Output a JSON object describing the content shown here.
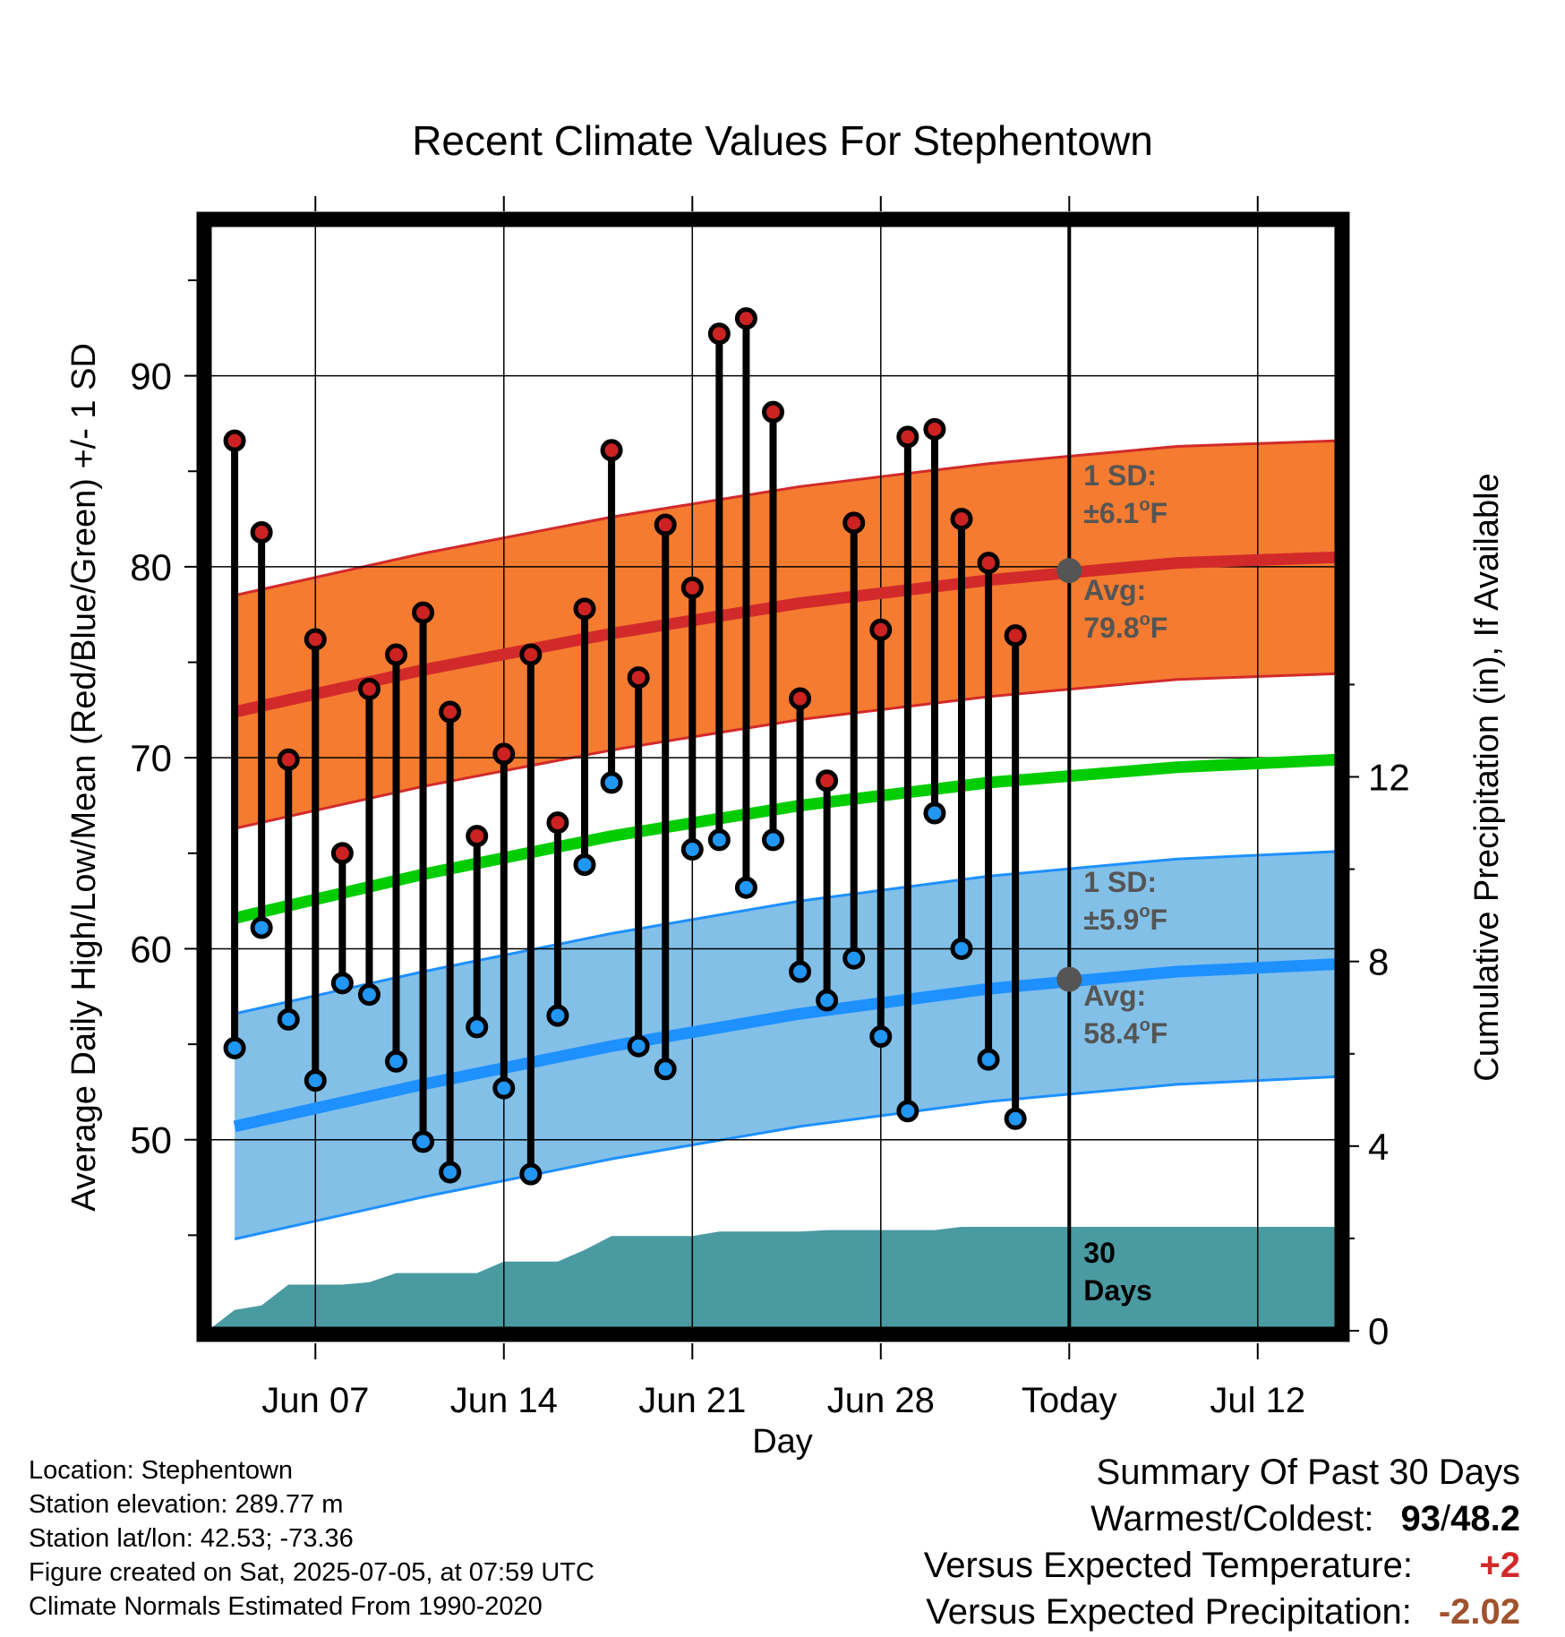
{
  "chart_data": {
    "type": "line",
    "title": "Recent Climate Values For Stephentown",
    "xlabel": "Day",
    "ylabel": "Average Daily High/Low/Mean (Red/Blue/Green) +/- 1 SD",
    "y2label": "Cumulative Precipitation (in), If Available",
    "x_tick_labels": [
      "Jun 07",
      "Jun 14",
      "Jun 21",
      "Jun 28",
      "Today",
      "Jul 12"
    ],
    "x_tick_dates": [
      "2025-06-07",
      "2025-06-14",
      "2025-06-21",
      "2025-06-28",
      "2025-07-05",
      "2025-07-12"
    ],
    "x_range": [
      "2025-06-03",
      "2025-07-15"
    ],
    "ylim": [
      40,
      98
    ],
    "y_ticks": [
      50,
      60,
      70,
      80,
      90
    ],
    "y2lim": [
      0,
      24
    ],
    "y2_ticks": [
      0,
      4,
      8,
      12
    ],
    "grid": true,
    "today": "2025-07-05",
    "days": [
      "2025-06-04",
      "2025-06-05",
      "2025-06-06",
      "2025-06-07",
      "2025-06-08",
      "2025-06-09",
      "2025-06-10",
      "2025-06-11",
      "2025-06-12",
      "2025-06-13",
      "2025-06-14",
      "2025-06-15",
      "2025-06-16",
      "2025-06-17",
      "2025-06-18",
      "2025-06-19",
      "2025-06-20",
      "2025-06-21",
      "2025-06-22",
      "2025-06-23",
      "2025-06-24",
      "2025-06-25",
      "2025-06-26",
      "2025-06-27",
      "2025-06-28",
      "2025-06-29",
      "2025-06-30",
      "2025-07-01",
      "2025-07-02",
      "2025-07-03",
      "2025-07-04"
    ],
    "highs": [
      86.6,
      81.8,
      69.9,
      76.2,
      65.0,
      73.6,
      75.4,
      77.6,
      72.4,
      65.9,
      70.2,
      75.4,
      66.6,
      77.8,
      86.1,
      74.2,
      82.2,
      78.9,
      92.2,
      93.0,
      88.1,
      73.1,
      68.8,
      82.3,
      76.7,
      86.8,
      87.2,
      82.5,
      80.2,
      76.4,
      null
    ],
    "lows": [
      54.8,
      61.1,
      56.3,
      53.1,
      58.2,
      57.6,
      54.1,
      49.9,
      48.3,
      55.9,
      52.7,
      48.2,
      56.5,
      64.4,
      68.7,
      54.9,
      53.7,
      65.2,
      65.7,
      63.2,
      65.7,
      58.8,
      57.3,
      59.5,
      55.4,
      51.5,
      67.1,
      60.0,
      54.2,
      51.1,
      null
    ],
    "normals_x": [
      "2025-06-04",
      "2025-06-11",
      "2025-06-18",
      "2025-06-25",
      "2025-07-02",
      "2025-07-09",
      "2025-07-15"
    ],
    "normal_high": [
      72.4,
      74.6,
      76.5,
      78.1,
      79.3,
      80.2,
      80.5
    ],
    "normal_low": [
      50.7,
      52.9,
      54.9,
      56.6,
      57.9,
      58.8,
      59.2
    ],
    "normal_mean": [
      61.6,
      63.9,
      65.9,
      67.5,
      68.7,
      69.5,
      69.9
    ],
    "sd_high": 6.1,
    "sd_low": 5.9,
    "precip_x": [
      "2025-06-03",
      "2025-06-04",
      "2025-06-05",
      "2025-06-06",
      "2025-06-07",
      "2025-06-08",
      "2025-06-09",
      "2025-06-10",
      "2025-06-11",
      "2025-06-12",
      "2025-06-13",
      "2025-06-14",
      "2025-06-15",
      "2025-06-16",
      "2025-06-17",
      "2025-06-18",
      "2025-06-19",
      "2025-06-20",
      "2025-06-21",
      "2025-06-22",
      "2025-06-23",
      "2025-06-24",
      "2025-06-25",
      "2025-06-26",
      "2025-06-27",
      "2025-06-28",
      "2025-06-29",
      "2025-06-30",
      "2025-07-01",
      "2025-07-02",
      "2025-07-03",
      "2025-07-04",
      "2025-07-05",
      "2025-07-15"
    ],
    "precip_cum": [
      0.0,
      0.45,
      0.55,
      1.0,
      1.0,
      1.0,
      1.05,
      1.25,
      1.25,
      1.25,
      1.25,
      1.5,
      1.5,
      1.5,
      1.75,
      2.05,
      2.05,
      2.05,
      2.05,
      2.15,
      2.15,
      2.15,
      2.15,
      2.18,
      2.18,
      2.18,
      2.18,
      2.18,
      2.25,
      2.25,
      2.25,
      2.25,
      2.25,
      2.25
    ],
    "annotations": {
      "sd_high": {
        "line1": "1 SD:",
        "line2": "±6.1",
        "unit": "F"
      },
      "avg_high": {
        "line1": "Avg:",
        "line2": "79.8",
        "unit": "F",
        "value": 79.8
      },
      "sd_low": {
        "line1": "1 SD:",
        "line2": "±5.9",
        "unit": "F"
      },
      "avg_low": {
        "line1": "Avg:",
        "line2": "58.4",
        "unit": "F",
        "value": 58.4
      },
      "precip_label": {
        "line1": "30",
        "line2": "Days"
      }
    },
    "colors": {
      "high_band": "#f47b30",
      "high_line": "#d22a2a",
      "low_band": "#82c0e8",
      "low_line": "#1e90ff",
      "mean_line": "#00cc00",
      "precip": "#4a9aa2",
      "high_dot": "#cc2222",
      "low_dot": "#2196f3",
      "annot_text": "#555555",
      "avg_dot": "#555555"
    }
  },
  "info": {
    "location": "Location: Stephentown",
    "elevation": "Station elevation: 289.77 m",
    "latlon": "Station lat/lon: 42.53; -73.36",
    "created": "Figure created on Sat, 2025-07-05, at 07:59 UTC",
    "normals": "Climate Normals Estimated From 1990-2020"
  },
  "summary": {
    "title": "Summary Of Past 30 Days",
    "warmest_label": "Warmest/Coldest:",
    "warmest_value": "93",
    "slash": "/",
    "coldest_value": "48.2",
    "temp_label": "Versus Expected Temperature:",
    "temp_value": "+2",
    "temp_color": "#d22a2a",
    "precip_label": "Versus Expected Precipitation:",
    "precip_value": "-2.02",
    "precip_color": "#a0522d"
  }
}
